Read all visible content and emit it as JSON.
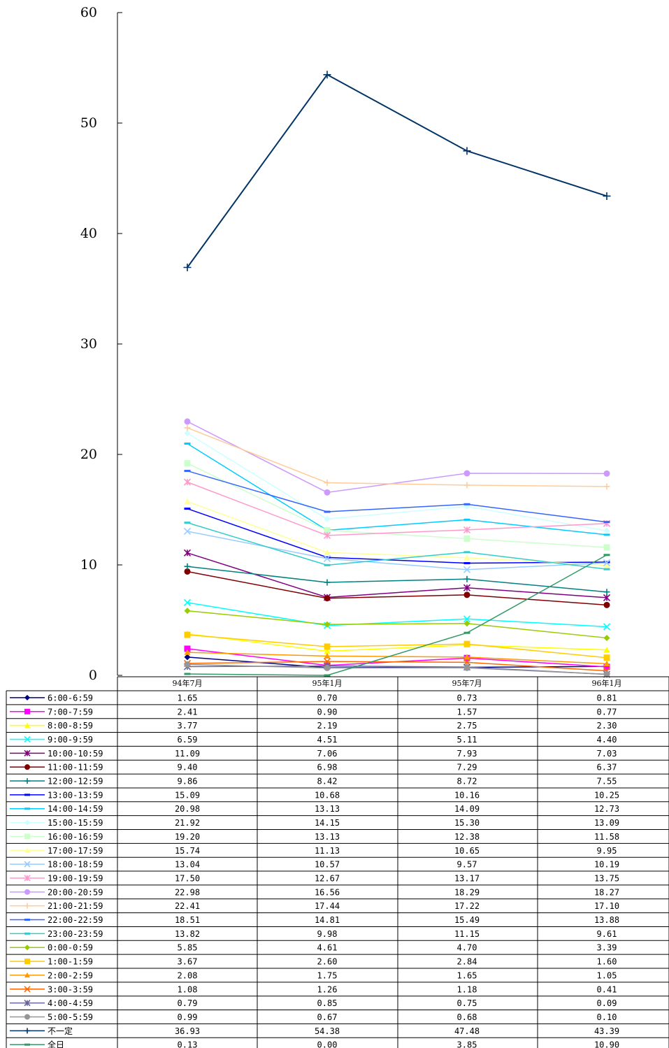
{
  "chart_data": {
    "type": "line",
    "categories": [
      "94年7月",
      "95年1月",
      "95年7月",
      "96年1月"
    ],
    "ylim": [
      0,
      60
    ],
    "yticks": [
      0,
      10,
      20,
      30,
      40,
      50,
      60
    ],
    "grid": false,
    "legend": "data table below chart",
    "series": [
      {
        "name": "6:00-6:59",
        "color": "#000080",
        "marker": "diamond",
        "values": [
          1.65,
          0.7,
          0.73,
          0.81
        ]
      },
      {
        "name": "7:00-7:59",
        "color": "#ff00ff",
        "marker": "square",
        "values": [
          2.41,
          0.9,
          1.57,
          0.77
        ]
      },
      {
        "name": "8:00-8:59",
        "color": "#ffff00",
        "marker": "triangle",
        "values": [
          3.77,
          2.19,
          2.75,
          2.3
        ]
      },
      {
        "name": "9:00-9:59",
        "color": "#00ffff",
        "marker": "x",
        "values": [
          6.59,
          4.51,
          5.11,
          4.4
        ]
      },
      {
        "name": "10:00-10:59",
        "color": "#800080",
        "marker": "star",
        "values": [
          11.09,
          7.06,
          7.93,
          7.03
        ]
      },
      {
        "name": "11:00-11:59",
        "color": "#800000",
        "marker": "circle",
        "values": [
          9.4,
          6.98,
          7.29,
          6.37
        ]
      },
      {
        "name": "12:00-12:59",
        "color": "#008080",
        "marker": "plus",
        "values": [
          9.86,
          8.42,
          8.72,
          7.55
        ]
      },
      {
        "name": "13:00-13:59",
        "color": "#0000ff",
        "marker": "dash",
        "values": [
          15.09,
          10.68,
          10.16,
          10.25
        ]
      },
      {
        "name": "14:00-14:59",
        "color": "#00ccff",
        "marker": "dash",
        "values": [
          20.98,
          13.13,
          14.09,
          12.73
        ]
      },
      {
        "name": "15:00-15:59",
        "color": "#ccffff",
        "marker": "diamond",
        "values": [
          21.92,
          14.15,
          15.3,
          13.09
        ]
      },
      {
        "name": "16:00-16:59",
        "color": "#ccffcc",
        "marker": "square",
        "values": [
          19.2,
          13.13,
          12.38,
          11.58
        ]
      },
      {
        "name": "17:00-17:59",
        "color": "#ffff99",
        "marker": "triangle",
        "values": [
          15.74,
          11.13,
          10.65,
          9.95
        ]
      },
      {
        "name": "18:00-18:59",
        "color": "#99ccff",
        "marker": "x",
        "values": [
          13.04,
          10.57,
          9.57,
          10.19
        ]
      },
      {
        "name": "19:00-19:59",
        "color": "#ff99cc",
        "marker": "star",
        "values": [
          17.5,
          12.67,
          13.17,
          13.75
        ]
      },
      {
        "name": "20:00-20:59",
        "color": "#cc99ff",
        "marker": "circle",
        "values": [
          22.98,
          16.56,
          18.29,
          18.27
        ]
      },
      {
        "name": "21:00-21:59",
        "color": "#ffcc99",
        "marker": "plus",
        "values": [
          22.41,
          17.44,
          17.22,
          17.1
        ]
      },
      {
        "name": "22:00-22:59",
        "color": "#3366ff",
        "marker": "dash",
        "values": [
          18.51,
          14.81,
          15.49,
          13.88
        ]
      },
      {
        "name": "23:00-23:59",
        "color": "#33cccc",
        "marker": "dash",
        "values": [
          13.82,
          9.98,
          11.15,
          9.61
        ]
      },
      {
        "name": "0:00-0:59",
        "color": "#99cc00",
        "marker": "diamond",
        "values": [
          5.85,
          4.61,
          4.7,
          3.39
        ]
      },
      {
        "name": "1:00-1:59",
        "color": "#ffcc00",
        "marker": "square",
        "values": [
          3.67,
          2.6,
          2.84,
          1.6
        ]
      },
      {
        "name": "2:00-2:59",
        "color": "#ff9900",
        "marker": "triangle",
        "values": [
          2.08,
          1.75,
          1.65,
          1.05
        ]
      },
      {
        "name": "3:00-3:59",
        "color": "#ff6600",
        "marker": "x",
        "values": [
          1.08,
          1.26,
          1.18,
          0.41
        ]
      },
      {
        "name": "4:00-4:59",
        "color": "#666699",
        "marker": "star",
        "values": [
          0.79,
          0.85,
          0.75,
          0.09
        ]
      },
      {
        "name": "5:00-5:59",
        "color": "#969696",
        "marker": "circle",
        "values": [
          0.99,
          0.67,
          0.68,
          0.1
        ]
      },
      {
        "name": "不一定",
        "color": "#003366",
        "marker": "plus",
        "values": [
          36.93,
          54.38,
          47.48,
          43.39
        ]
      },
      {
        "name": "全日",
        "color": "#339966",
        "marker": "dash",
        "values": [
          0.13,
          0.0,
          3.85,
          10.9
        ]
      }
    ]
  }
}
